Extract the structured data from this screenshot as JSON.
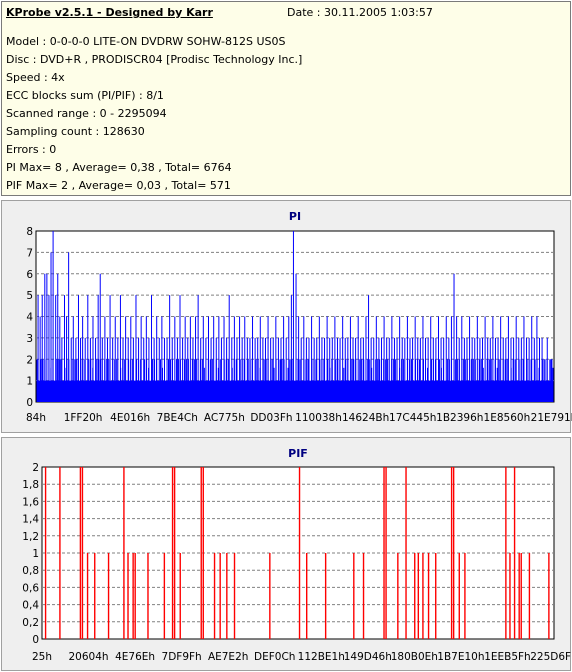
{
  "info": {
    "title": "KProbe v2.5.1 - Designed by Karr",
    "date": "Date : 30.11.2005 1:03:57",
    "lines": [
      "Model : 0-0-0-0 LITE-ON DVDRW SOHW-812S  US0S",
      "Disc : DVD+R , PRODISCR04 [Prodisc Technology Inc.]",
      "Speed : 4x",
      "ECC blocks sum (PI/PIF) : 8/1",
      "Scanned range : 0 - 2295094",
      "Sampling count : 128630",
      "Errors : 0",
      "PI Max= 8 , Average= 0,38 , Total= 6764",
      "PIF Max= 2 , Average= 0,03 , Total= 571"
    ]
  },
  "colors": {
    "pi_bar": "#0000ff",
    "pif_bar": "#ff0000",
    "title": "#000080",
    "plot_bg": "#ffffff",
    "panel_bg": "#efefef",
    "info_bg": "#fefee8",
    "grid": "#808080"
  },
  "chart_data": [
    {
      "type": "bar",
      "title": "PI",
      "xlabel": "",
      "ylabel": "",
      "ylim": [
        0,
        8
      ],
      "y_ticks": [
        "0",
        "1",
        "2",
        "3",
        "4",
        "5",
        "6",
        "7",
        "8"
      ],
      "x_tick_labels": [
        "84h",
        "1FF20h",
        "4E016h",
        "7BE4Ch",
        "AC775h",
        "DD03Fh",
        "110038h",
        "14624Bh",
        "17C445h",
        "1B2396h",
        "1E8560h",
        "21E791h"
      ],
      "grid": "dashed horizontal",
      "series": [
        {
          "baseline": 1,
          "spikes": [
            [
              0.004,
              5
            ],
            [
              0.008,
              4
            ],
            [
              0.012,
              5
            ],
            [
              0.017,
              6
            ],
            [
              0.021,
              6
            ],
            [
              0.025,
              5
            ],
            [
              0.029,
              7
            ],
            [
              0.033,
              8
            ],
            [
              0.038,
              5
            ],
            [
              0.042,
              6
            ],
            [
              0.046,
              4
            ],
            [
              0.05,
              3
            ],
            [
              0.055,
              5
            ],
            [
              0.059,
              4
            ],
            [
              0.063,
              7
            ],
            [
              0.068,
              3
            ],
            [
              0.072,
              4
            ],
            [
              0.077,
              3
            ],
            [
              0.082,
              5
            ],
            [
              0.086,
              3
            ],
            [
              0.09,
              4
            ],
            [
              0.095,
              3
            ],
            [
              0.1,
              5
            ],
            [
              0.105,
              3
            ],
            [
              0.11,
              4
            ],
            [
              0.115,
              3
            ],
            [
              0.12,
              5
            ],
            [
              0.124,
              6
            ],
            [
              0.128,
              3
            ],
            [
              0.133,
              4
            ],
            [
              0.138,
              3
            ],
            [
              0.143,
              5
            ],
            [
              0.148,
              3
            ],
            [
              0.153,
              4
            ],
            [
              0.158,
              3
            ],
            [
              0.163,
              5
            ],
            [
              0.168,
              3
            ],
            [
              0.173,
              4
            ],
            [
              0.178,
              3
            ],
            [
              0.183,
              4
            ],
            [
              0.188,
              3
            ],
            [
              0.193,
              5
            ],
            [
              0.198,
              3
            ],
            [
              0.203,
              4
            ],
            [
              0.208,
              3
            ],
            [
              0.213,
              4
            ],
            [
              0.218,
              3
            ],
            [
              0.223,
              5
            ],
            [
              0.228,
              3
            ],
            [
              0.233,
              4
            ],
            [
              0.238,
              3
            ],
            [
              0.243,
              4
            ],
            [
              0.248,
              3
            ],
            [
              0.253,
              3
            ],
            [
              0.258,
              5
            ],
            [
              0.263,
              3
            ],
            [
              0.268,
              4
            ],
            [
              0.273,
              3
            ],
            [
              0.278,
              5
            ],
            [
              0.283,
              3
            ],
            [
              0.288,
              4
            ],
            [
              0.293,
              3
            ],
            [
              0.298,
              4
            ],
            [
              0.303,
              3
            ],
            [
              0.308,
              4
            ],
            [
              0.313,
              5
            ],
            [
              0.318,
              3
            ],
            [
              0.323,
              4
            ],
            [
              0.328,
              3
            ],
            [
              0.333,
              4
            ],
            [
              0.338,
              3
            ],
            [
              0.343,
              4
            ],
            [
              0.348,
              3
            ],
            [
              0.353,
              4
            ],
            [
              0.358,
              3
            ],
            [
              0.363,
              4
            ],
            [
              0.368,
              3
            ],
            [
              0.373,
              5
            ],
            [
              0.378,
              3
            ],
            [
              0.383,
              4
            ],
            [
              0.388,
              3
            ],
            [
              0.393,
              4
            ],
            [
              0.398,
              3
            ],
            [
              0.403,
              4
            ],
            [
              0.408,
              3
            ],
            [
              0.413,
              3
            ],
            [
              0.418,
              4
            ],
            [
              0.423,
              3
            ],
            [
              0.428,
              3
            ],
            [
              0.433,
              4
            ],
            [
              0.438,
              3
            ],
            [
              0.443,
              3
            ],
            [
              0.448,
              4
            ],
            [
              0.453,
              3
            ],
            [
              0.458,
              3
            ],
            [
              0.463,
              4
            ],
            [
              0.468,
              3
            ],
            [
              0.473,
              3
            ],
            [
              0.478,
              4
            ],
            [
              0.483,
              3
            ],
            [
              0.488,
              4
            ],
            [
              0.493,
              5
            ],
            [
              0.497,
              8
            ],
            [
              0.502,
              6
            ],
            [
              0.507,
              4
            ],
            [
              0.512,
              3
            ],
            [
              0.517,
              4
            ],
            [
              0.522,
              3
            ],
            [
              0.527,
              3
            ],
            [
              0.532,
              4
            ],
            [
              0.537,
              3
            ],
            [
              0.542,
              3
            ],
            [
              0.547,
              4
            ],
            [
              0.552,
              3
            ],
            [
              0.557,
              3
            ],
            [
              0.562,
              4
            ],
            [
              0.567,
              3
            ],
            [
              0.572,
              3
            ],
            [
              0.577,
              4
            ],
            [
              0.582,
              3
            ],
            [
              0.587,
              3
            ],
            [
              0.592,
              4
            ],
            [
              0.597,
              3
            ],
            [
              0.602,
              3
            ],
            [
              0.607,
              4
            ],
            [
              0.612,
              3
            ],
            [
              0.617,
              3
            ],
            [
              0.622,
              4
            ],
            [
              0.627,
              3
            ],
            [
              0.632,
              3
            ],
            [
              0.637,
              4
            ],
            [
              0.642,
              5
            ],
            [
              0.647,
              3
            ],
            [
              0.652,
              3
            ],
            [
              0.657,
              4
            ],
            [
              0.662,
              3
            ],
            [
              0.667,
              3
            ],
            [
              0.672,
              4
            ],
            [
              0.677,
              3
            ],
            [
              0.682,
              3
            ],
            [
              0.687,
              4
            ],
            [
              0.692,
              3
            ],
            [
              0.697,
              3
            ],
            [
              0.702,
              4
            ],
            [
              0.707,
              3
            ],
            [
              0.712,
              3
            ],
            [
              0.717,
              4
            ],
            [
              0.722,
              3
            ],
            [
              0.727,
              3
            ],
            [
              0.732,
              4
            ],
            [
              0.737,
              3
            ],
            [
              0.742,
              3
            ],
            [
              0.747,
              4
            ],
            [
              0.752,
              3
            ],
            [
              0.757,
              3
            ],
            [
              0.762,
              4
            ],
            [
              0.767,
              3
            ],
            [
              0.772,
              3
            ],
            [
              0.777,
              4
            ],
            [
              0.782,
              3
            ],
            [
              0.787,
              3
            ],
            [
              0.792,
              4
            ],
            [
              0.797,
              3
            ],
            [
              0.802,
              4
            ],
            [
              0.807,
              6
            ],
            [
              0.812,
              4
            ],
            [
              0.817,
              3
            ],
            [
              0.822,
              4
            ],
            [
              0.827,
              3
            ],
            [
              0.832,
              3
            ],
            [
              0.837,
              4
            ],
            [
              0.842,
              3
            ],
            [
              0.847,
              3
            ],
            [
              0.852,
              4
            ],
            [
              0.857,
              3
            ],
            [
              0.862,
              3
            ],
            [
              0.867,
              4
            ],
            [
              0.872,
              3
            ],
            [
              0.877,
              3
            ],
            [
              0.882,
              4
            ],
            [
              0.887,
              3
            ],
            [
              0.892,
              3
            ],
            [
              0.897,
              4
            ],
            [
              0.902,
              3
            ],
            [
              0.907,
              3
            ],
            [
              0.912,
              4
            ],
            [
              0.917,
              3
            ],
            [
              0.922,
              3
            ],
            [
              0.927,
              4
            ],
            [
              0.932,
              3
            ],
            [
              0.937,
              3
            ],
            [
              0.942,
              4
            ],
            [
              0.947,
              3
            ],
            [
              0.952,
              3
            ],
            [
              0.957,
              4
            ],
            [
              0.962,
              3
            ],
            [
              0.967,
              4
            ],
            [
              0.972,
              3
            ],
            [
              0.977,
              3
            ],
            [
              0.982,
              2
            ],
            [
              0.987,
              3
            ],
            [
              0.992,
              2
            ],
            [
              0.996,
              2
            ]
          ]
        }
      ]
    },
    {
      "type": "bar",
      "title": "PIF",
      "xlabel": "",
      "ylabel": "",
      "ylim": [
        0,
        2
      ],
      "y_ticks": [
        "0",
        "0,2",
        "0,4",
        "0,6",
        "0,8",
        "1",
        "1,2",
        "1,4",
        "1,6",
        "1,8",
        "2"
      ],
      "x_tick_labels": [
        "25h",
        "20604h",
        "4E76Eh",
        "7DF9Fh",
        "AE7E2h",
        "DEF0Ch",
        "112BE1h",
        "149D46h",
        "180B0Eh",
        "1B7E10h",
        "1EEB5Fh",
        "225D6Fh"
      ],
      "grid": "dashed horizontal",
      "series": [
        {
          "bars": [
            [
              0.007,
              2
            ],
            [
              0.035,
              2
            ],
            [
              0.075,
              2
            ],
            [
              0.079,
              2
            ],
            [
              0.089,
              1
            ],
            [
              0.103,
              1
            ],
            [
              0.13,
              1
            ],
            [
              0.16,
              2
            ],
            [
              0.168,
              1
            ],
            [
              0.178,
              1
            ],
            [
              0.182,
              1
            ],
            [
              0.207,
              1
            ],
            [
              0.239,
              1
            ],
            [
              0.255,
              2
            ],
            [
              0.259,
              2
            ],
            [
              0.27,
              1
            ],
            [
              0.311,
              2
            ],
            [
              0.315,
              2
            ],
            [
              0.337,
              1
            ],
            [
              0.348,
              1
            ],
            [
              0.361,
              1
            ],
            [
              0.376,
              1
            ],
            [
              0.445,
              1
            ],
            [
              0.503,
              2
            ],
            [
              0.517,
              1
            ],
            [
              0.554,
              1
            ],
            [
              0.609,
              1
            ],
            [
              0.628,
              1
            ],
            [
              0.668,
              2
            ],
            [
              0.672,
              2
            ],
            [
              0.695,
              1
            ],
            [
              0.711,
              2
            ],
            [
              0.728,
              1
            ],
            [
              0.735,
              1
            ],
            [
              0.744,
              1
            ],
            [
              0.755,
              1
            ],
            [
              0.769,
              1
            ],
            [
              0.8,
              2
            ],
            [
              0.804,
              2
            ],
            [
              0.815,
              1
            ],
            [
              0.826,
              1
            ],
            [
              0.906,
              2
            ],
            [
              0.914,
              1
            ],
            [
              0.923,
              2
            ],
            [
              0.932,
              1
            ],
            [
              0.936,
              1
            ],
            [
              0.952,
              1
            ],
            [
              0.99,
              1
            ]
          ]
        }
      ]
    }
  ]
}
